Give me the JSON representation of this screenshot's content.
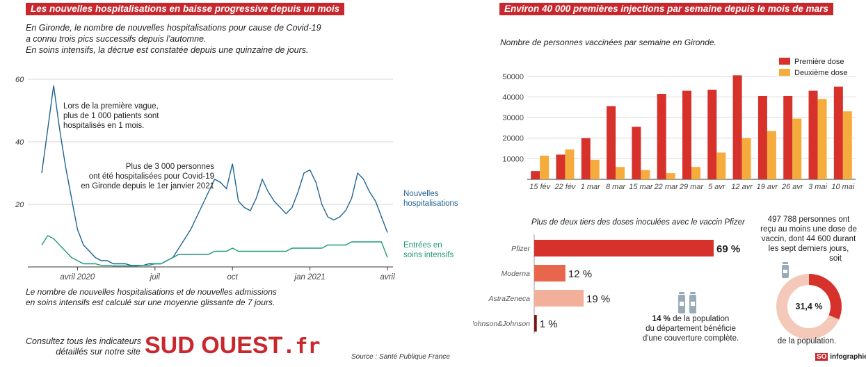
{
  "left_panel": {
    "banner": "Les nouvelles hospitalisations en baisse progressive depuis un mois",
    "intro": [
      "En Gironde, le nombre de nouvelles hospitalisations pour cause de Covid-19",
      "a connu trois pics successifs depuis l'automne.",
      "En soins intensifs, la décrue est constatée depuis une quinzaine de jours."
    ],
    "annotation_1": [
      "Lors de la première vague,",
      "plus de 1 000 patients sont",
      "hospitalisés en 1 mois."
    ],
    "annotation_2": [
      "Plus de 3 000 personnes",
      "ont été hospitalisées pour Covid-19",
      "en Gironde depuis le 1er janvier 2021"
    ],
    "footnote": [
      "Le nombre de nouvelles hospitalisations et de nouvelles admissions",
      "en soins intensifs est calculé sur une moyenne glissante de 7 jours."
    ],
    "promo": [
      "Consultez tous les indicateurs",
      "détaillés sur notre site"
    ],
    "logo_text": "SUD OUEST",
    "logo_suffix": ".fr",
    "source": "Source : Santé Publique France"
  },
  "right_panel": {
    "banner": "Environ 40 000 premières injections par semaine depuis le mois de mars",
    "subtitle": "Nombre de personnes vaccinées par semaine en Gironde.",
    "vaccine_title": "Plus de deux tiers des doses inoculées avec le vaccin Pfizer",
    "coverage_text": [
      "de la population",
      "du département bénéficie",
      "d'une couverture complète."
    ],
    "coverage_pct": "14 %",
    "donut_text_top": [
      "497 788 personnes ont",
      "reçu au moins une dose de",
      "vaccin, dont 44 600 durant",
      "les sept derniers jours,",
      "soit"
    ],
    "donut_text_bottom": "de la population.",
    "donut_value": "31,4 %",
    "credit_badge": "SO",
    "credit": "infographie"
  },
  "colors": {
    "banner": "#c8282d",
    "hosp": "#1f6391",
    "icu": "#1e9a78",
    "dose1": "#d7312b",
    "dose2": "#f6ac3d",
    "pfizer": "#d7312b",
    "moderna": "#e8674c",
    "astrazeneca": "#f2b09b",
    "jj": "#7a1512",
    "donut_fill": "#d7312b",
    "donut_rest": "#f4c9ba",
    "icon": "#9aabb8"
  },
  "chart_data": [
    {
      "type": "line",
      "y_ticks": [
        60,
        40,
        20
      ],
      "ylim": [
        0,
        60
      ],
      "x_tick_labels": [
        "avril 2020",
        "juil",
        "oct",
        "jan 2021",
        "avril"
      ],
      "x_tick_index": [
        6,
        19,
        32,
        45,
        58
      ],
      "series": [
        {
          "name": "Nouvelles hospitalisations",
          "values": [
            30,
            44,
            58,
            44,
            32,
            22,
            12,
            7,
            5,
            3,
            2,
            2,
            1,
            1,
            1,
            0.5,
            0.5,
            0.5,
            1,
            1,
            1,
            2,
            3,
            6,
            9,
            12,
            16,
            20,
            24,
            28,
            27,
            25,
            33,
            21,
            19,
            18,
            22,
            28,
            24,
            21,
            19,
            17,
            19,
            24,
            30,
            31,
            27,
            20,
            16,
            15,
            16,
            18,
            22,
            30,
            28,
            24,
            21,
            16,
            11
          ]
        },
        {
          "name": "Entrées en soins intensifs",
          "values": [
            7,
            10,
            9,
            7,
            5,
            3,
            2,
            1,
            1,
            1,
            0.5,
            0.5,
            0.3,
            0.3,
            0.3,
            0.3,
            0.3,
            0.5,
            0.5,
            1,
            1,
            2,
            3,
            4,
            4,
            4,
            4,
            4,
            4,
            5,
            5,
            5,
            6,
            5,
            5,
            5,
            5,
            5,
            5,
            5,
            5,
            5,
            6,
            6,
            6,
            6,
            6,
            6,
            7,
            7,
            7,
            7,
            8,
            8,
            8,
            8,
            8,
            8,
            3
          ]
        }
      ]
    },
    {
      "type": "bar",
      "categories": [
        "15 fév",
        "22 fév",
        "1 mar",
        "8 mar",
        "15 mar",
        "22 mar",
        "29 mar",
        "5 avr",
        "12 avr",
        "19 avr",
        "26 avr",
        "3 mai",
        "10 mai"
      ],
      "y_ticks": [
        10000,
        20000,
        30000,
        40000,
        50000
      ],
      "ylim": [
        0,
        55000
      ],
      "series": [
        {
          "name": "Première dose",
          "values": [
            4000,
            12000,
            20000,
            35500,
            25500,
            41500,
            43000,
            43500,
            50500,
            40500,
            40500,
            43000,
            45000
          ]
        },
        {
          "name": "Deuxième dose",
          "values": [
            11500,
            14500,
            9500,
            6000,
            4500,
            3000,
            6000,
            13000,
            20000,
            23500,
            29500,
            39000,
            33000
          ]
        }
      ]
    },
    {
      "type": "bar",
      "orientation": "horizontal",
      "categories": [
        "Pfizer",
        "Moderna",
        "AstraZeneca",
        "Johnson&Johnson"
      ],
      "values": [
        69,
        12,
        19,
        1
      ],
      "value_labels": [
        "69 %",
        "12 %",
        "19 %",
        "1 %"
      ]
    },
    {
      "type": "pie",
      "values": [
        31.4,
        68.6
      ]
    }
  ]
}
